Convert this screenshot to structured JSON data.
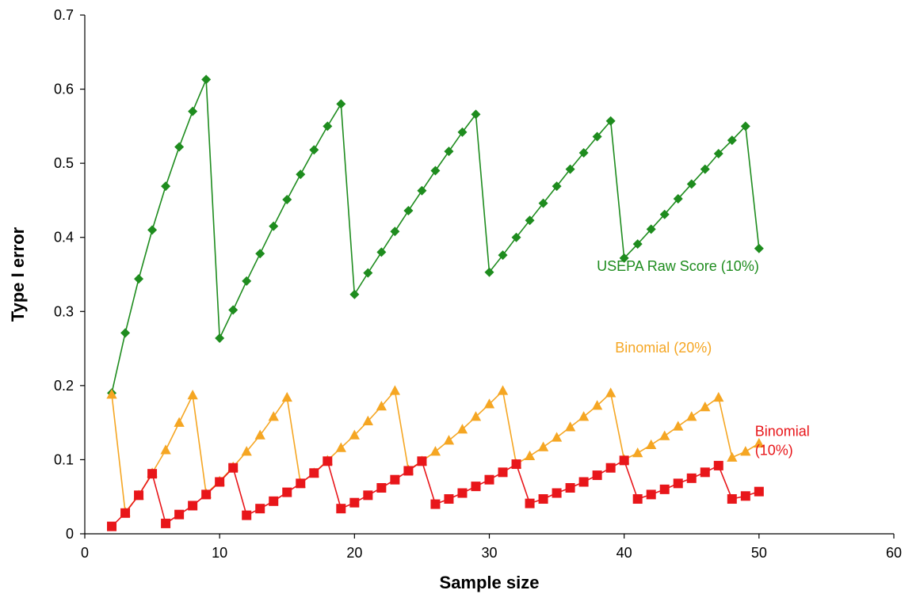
{
  "chart_data": {
    "type": "line",
    "title": "",
    "xlabel": "Sample size",
    "ylabel": "Type I error",
    "xlim": [
      0,
      60
    ],
    "ylim": [
      0,
      0.7
    ],
    "x_ticks": [
      0,
      10,
      20,
      30,
      40,
      50,
      60
    ],
    "y_ticks": [
      0,
      0.1,
      0.2,
      0.3,
      0.4,
      0.5,
      0.6,
      0.7
    ],
    "x_tick_labels": [
      "0",
      "10",
      "20",
      "30",
      "40",
      "50",
      "60"
    ],
    "y_tick_labels": [
      "0",
      "0.1",
      "0.2",
      "0.3",
      "0.4",
      "0.5",
      "0.6",
      "0.7"
    ],
    "grid": false,
    "legend": "none",
    "series": [
      {
        "name": "USEPA Raw Score (10%)",
        "color": "#1e8c1e",
        "marker": "diamond",
        "x": [
          2,
          3,
          4,
          5,
          6,
          7,
          8,
          9,
          10,
          11,
          12,
          13,
          14,
          15,
          16,
          17,
          18,
          19,
          20,
          21,
          22,
          23,
          24,
          25,
          26,
          27,
          28,
          29,
          30,
          31,
          32,
          33,
          34,
          35,
          36,
          37,
          38,
          39,
          40,
          41,
          42,
          43,
          44,
          45,
          46,
          47,
          48,
          49,
          50
        ],
        "values": [
          0.19,
          0.271,
          0.344,
          0.41,
          0.469,
          0.522,
          0.57,
          0.613,
          0.264,
          0.302,
          0.341,
          0.378,
          0.415,
          0.451,
          0.485,
          0.518,
          0.55,
          0.58,
          0.323,
          0.352,
          0.38,
          0.408,
          0.436,
          0.463,
          0.49,
          0.516,
          0.542,
          0.566,
          0.353,
          0.376,
          0.4,
          0.423,
          0.446,
          0.469,
          0.492,
          0.514,
          0.536,
          0.557,
          0.372,
          0.391,
          0.411,
          0.431,
          0.452,
          0.472,
          0.492,
          0.513,
          0.531,
          0.55,
          0.385
        ]
      },
      {
        "name": "Binomial (20%)",
        "color": "#f5a623",
        "marker": "triangle",
        "x": [
          2,
          3,
          4,
          5,
          6,
          7,
          8,
          9,
          10,
          11,
          12,
          13,
          14,
          15,
          16,
          17,
          18,
          19,
          20,
          21,
          22,
          23,
          24,
          25,
          26,
          27,
          28,
          29,
          30,
          31,
          32,
          33,
          34,
          35,
          36,
          37,
          38,
          39,
          40,
          41,
          42,
          43,
          44,
          45,
          46,
          47,
          48,
          49,
          50
        ],
        "values": [
          0.188,
          0.029,
          0.052,
          0.082,
          0.113,
          0.15,
          0.187,
          0.054,
          0.071,
          0.09,
          0.111,
          0.133,
          0.158,
          0.184,
          0.068,
          0.082,
          0.099,
          0.116,
          0.133,
          0.152,
          0.172,
          0.193,
          0.086,
          0.098,
          0.111,
          0.126,
          0.141,
          0.158,
          0.175,
          0.193,
          0.094,
          0.105,
          0.117,
          0.13,
          0.144,
          0.158,
          0.173,
          0.19,
          0.1,
          0.109,
          0.12,
          0.132,
          0.145,
          0.158,
          0.171,
          0.184,
          0.103,
          0.111,
          0.122
        ]
      },
      {
        "name": "Binomial (10%)",
        "color": "#e8161a",
        "marker": "square",
        "x": [
          2,
          3,
          4,
          5,
          6,
          7,
          8,
          9,
          10,
          11,
          12,
          13,
          14,
          15,
          16,
          17,
          18,
          19,
          20,
          21,
          22,
          23,
          24,
          25,
          26,
          27,
          28,
          29,
          30,
          31,
          32,
          33,
          34,
          35,
          36,
          37,
          38,
          39,
          40,
          41,
          42,
          43,
          44,
          45,
          46,
          47,
          48,
          49,
          50
        ],
        "values": [
          0.01,
          0.028,
          0.052,
          0.081,
          0.014,
          0.026,
          0.038,
          0.053,
          0.07,
          0.089,
          0.025,
          0.034,
          0.044,
          0.056,
          0.068,
          0.082,
          0.098,
          0.034,
          0.042,
          0.052,
          0.062,
          0.073,
          0.085,
          0.098,
          0.04,
          0.047,
          0.055,
          0.064,
          0.073,
          0.083,
          0.094,
          0.041,
          0.047,
          0.055,
          0.062,
          0.07,
          0.079,
          0.089,
          0.099,
          0.047,
          0.053,
          0.06,
          0.068,
          0.075,
          0.083,
          0.092,
          0.047,
          0.051,
          0.057
        ]
      }
    ],
    "annotations": [
      {
        "series": 0,
        "lines": [
          "USEPA Raw Score (10%)"
        ],
        "x": 50,
        "y": 0.355,
        "anchor": "end"
      },
      {
        "series": 1,
        "lines": [
          "Binomial (20%)"
        ],
        "x": 46.5,
        "y": 0.245,
        "anchor": "end"
      },
      {
        "series": 2,
        "lines": [
          "Binomial",
          "(10%)"
        ],
        "x": 49.7,
        "y": 0.132,
        "anchor": "start"
      }
    ]
  }
}
